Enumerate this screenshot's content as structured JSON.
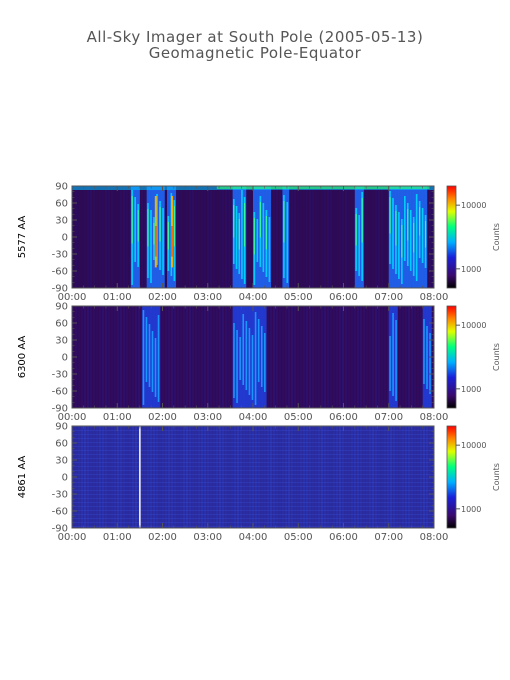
{
  "header": {
    "title": "All-Sky Imager at South Pole (2005-05-13)",
    "subtitle": "Geomagnetic Pole-Equator"
  },
  "colors": {
    "background": "#ffffff",
    "axis": "#555555",
    "keogram_base": "#2a0a4a"
  },
  "chart_data": [
    {
      "type": "heatmap",
      "ylabel": "5577 AA",
      "x_ticks": [
        "00:00",
        "01:00",
        "02:00",
        "03:00",
        "04:00",
        "05:00",
        "06:00",
        "07:00",
        "08:00"
      ],
      "y_ticks": [
        90,
        60,
        30,
        0,
        -30,
        -60,
        -90
      ],
      "xlim_hours": [
        0,
        8
      ],
      "ylim": [
        -90,
        90
      ],
      "colorbar": {
        "label": "Counts",
        "scale": "log",
        "tick_labels": [
          "10000",
          "1000"
        ],
        "tick_values": [
          10000,
          1000
        ],
        "range": [
          500,
          20000
        ]
      },
      "bright_bands_hours": [
        [
          1.3,
          1.5
        ],
        [
          1.65,
          2.05
        ],
        [
          2.1,
          2.3
        ],
        [
          3.55,
          3.85
        ],
        [
          4.0,
          4.4
        ],
        [
          4.65,
          4.8
        ],
        [
          6.25,
          6.45
        ],
        [
          7.0,
          7.85
        ]
      ]
    },
    {
      "type": "heatmap",
      "ylabel": "6300 AA",
      "x_ticks": [
        "00:00",
        "01:00",
        "02:00",
        "03:00",
        "04:00",
        "05:00",
        "06:00",
        "07:00",
        "08:00"
      ],
      "y_ticks": [
        90,
        60,
        30,
        0,
        -30,
        -60,
        -90
      ],
      "xlim_hours": [
        0,
        8
      ],
      "ylim": [
        -90,
        90
      ],
      "colorbar": {
        "label": "Counts",
        "scale": "log",
        "tick_labels": [
          "10000",
          "1000"
        ],
        "tick_values": [
          10000,
          1000
        ],
        "range": [
          500,
          20000
        ]
      },
      "bright_bands_hours": [
        [
          1.55,
          1.95
        ],
        [
          3.55,
          4.3
        ],
        [
          7.0,
          7.2
        ],
        [
          7.75,
          7.95
        ]
      ]
    },
    {
      "type": "heatmap",
      "ylabel": "4861 AA",
      "x_ticks": [
        "00:00",
        "01:00",
        "02:00",
        "03:00",
        "04:00",
        "05:00",
        "06:00",
        "07:00",
        "08:00"
      ],
      "y_ticks": [
        90,
        60,
        30,
        0,
        -30,
        -60,
        -90
      ],
      "xlim_hours": [
        0,
        8
      ],
      "ylim": [
        -90,
        90
      ],
      "colorbar": {
        "label": "Counts",
        "scale": "log",
        "tick_labels": [
          "10000",
          "1000"
        ],
        "tick_values": [
          10000,
          1000
        ],
        "range": [
          500,
          20000
        ]
      },
      "gap_line_hour": 1.5
    }
  ]
}
